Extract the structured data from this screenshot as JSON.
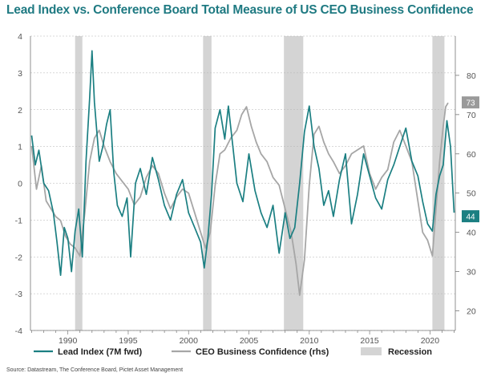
{
  "title": "Lead Index vs. Conference Board Total Measure of US CEO Business Confidence",
  "source": "Source: Datastream, The Conference Board, Pictet Asset Management",
  "colors": {
    "lead": "#1b7f82",
    "ceo": "#a6a6a6",
    "recession": "#d4d4d4",
    "title": "#1f7a82",
    "badge_ceo": "#9a9a9a",
    "badge_lead": "#1b7f82"
  },
  "chart_data": {
    "type": "line",
    "title": "Lead Index vs. Conference Board Total Measure of US CEO Business Confidence",
    "x_range": [
      1986.9,
      2022.1
    ],
    "x_ticks": [
      "1990",
      "1995",
      "2000",
      "2005",
      "2010",
      "2015",
      "2020"
    ],
    "y_left": {
      "range": [
        -4,
        4
      ],
      "ticks": [
        "4",
        "3",
        "2",
        "1",
        "0",
        "-1",
        "-2",
        "-3",
        "-4"
      ]
    },
    "y_right": {
      "range": [
        15,
        90
      ],
      "ticks": [
        "80",
        "70",
        "60",
        "50",
        "40",
        "30",
        "20"
      ]
    },
    "grid": true,
    "legend_position": "bottom",
    "recessions": [
      [
        1990.6,
        1991.2
      ],
      [
        2001.2,
        2001.9
      ],
      [
        2007.9,
        2009.5
      ],
      [
        2020.2,
        2021.2
      ]
    ],
    "series": [
      {
        "name": "Lead Index (7M fwd)",
        "axis": "left",
        "x": [
          1987.0,
          1987.3,
          1987.6,
          1988.0,
          1988.4,
          1988.8,
          1989.1,
          1989.4,
          1989.7,
          1990.0,
          1990.3,
          1990.6,
          1990.9,
          1991.2,
          1991.5,
          1991.8,
          1992.0,
          1992.2,
          1992.4,
          1992.6,
          1992.9,
          1993.2,
          1993.5,
          1993.8,
          1994.1,
          1994.5,
          1994.9,
          1995.2,
          1995.6,
          1996.0,
          1996.5,
          1997.0,
          1997.5,
          1998.0,
          1998.5,
          1999.0,
          1999.5,
          2000.0,
          2000.5,
          2001.0,
          2001.3,
          2001.6,
          2001.9,
          2002.2,
          2002.6,
          2003.0,
          2003.3,
          2003.7,
          2004.0,
          2004.5,
          2005.0,
          2005.5,
          2006.0,
          2006.5,
          2007.0,
          2007.5,
          2008.0,
          2008.4,
          2008.8,
          2009.2,
          2009.6,
          2010.0,
          2010.4,
          2010.8,
          2011.2,
          2011.6,
          2012.0,
          2012.5,
          2013.0,
          2013.5,
          2014.0,
          2014.5,
          2015.0,
          2015.5,
          2016.0,
          2016.5,
          2017.0,
          2017.5,
          2018.0,
          2018.5,
          2019.0,
          2019.4,
          2019.8,
          2020.2,
          2020.5,
          2020.8,
          2021.1,
          2021.4,
          2021.7,
          2022.0
        ],
        "values": [
          1.3,
          0.5,
          0.9,
          0.0,
          -0.2,
          -0.8,
          -1.6,
          -2.5,
          -1.2,
          -1.5,
          -2.4,
          -1.3,
          -0.7,
          -2.0,
          0.6,
          2.3,
          3.6,
          2.2,
          1.4,
          0.6,
          1.0,
          1.6,
          2.0,
          0.3,
          -0.6,
          -0.9,
          -0.4,
          -2.0,
          0.0,
          0.4,
          -0.3,
          0.7,
          0.1,
          -0.6,
          -1.0,
          -0.3,
          0.1,
          -0.8,
          -1.2,
          -1.6,
          -2.3,
          -1.5,
          -0.3,
          1.5,
          2.0,
          1.2,
          2.1,
          0.9,
          0.0,
          -0.5,
          0.8,
          -0.2,
          -0.8,
          -1.2,
          -0.6,
          -1.9,
          -0.8,
          -1.5,
          -1.2,
          0.0,
          1.4,
          2.1,
          1.0,
          0.4,
          -0.6,
          -0.2,
          -0.9,
          0.1,
          0.8,
          -1.1,
          -0.3,
          0.8,
          0.2,
          -0.4,
          -0.7,
          0.1,
          0.5,
          1.0,
          1.5,
          0.6,
          0.2,
          -0.5,
          -1.1,
          -1.3,
          -0.3,
          0.2,
          0.5,
          1.7,
          1.0,
          -0.8
        ]
      },
      {
        "name": "CEO Business Confidence (rhs)",
        "axis": "right",
        "x": [
          1987.0,
          1987.4,
          1987.8,
          1988.2,
          1988.6,
          1989.0,
          1989.4,
          1989.8,
          1990.2,
          1990.6,
          1991.0,
          1991.4,
          1991.8,
          1992.2,
          1992.6,
          1993.0,
          1993.5,
          1994.0,
          1994.5,
          1995.0,
          1995.5,
          1996.0,
          1996.5,
          1997.0,
          1997.5,
          1998.0,
          1998.5,
          1999.0,
          1999.5,
          2000.0,
          2000.5,
          2001.0,
          2001.4,
          2001.8,
          2002.2,
          2002.6,
          2003.0,
          2003.5,
          2004.0,
          2004.4,
          2004.8,
          2005.2,
          2005.6,
          2006.0,
          2006.5,
          2007.0,
          2007.5,
          2008.0,
          2008.5,
          2008.9,
          2009.2,
          2009.6,
          2010.0,
          2010.4,
          2010.8,
          2011.2,
          2011.6,
          2012.0,
          2012.5,
          2013.0,
          2013.5,
          2014.0,
          2014.5,
          2015.0,
          2015.5,
          2016.0,
          2016.5,
          2017.0,
          2017.5,
          2018.0,
          2018.5,
          2019.0,
          2019.4,
          2019.8,
          2020.2,
          2020.5,
          2020.8,
          2021.1,
          2021.3,
          2021.5
        ],
        "values": [
          62,
          51,
          57,
          48,
          46,
          44,
          43,
          39,
          37,
          36,
          34,
          45,
          58,
          64,
          66,
          62,
          58,
          55,
          53,
          51,
          47,
          49,
          54,
          57,
          55,
          50,
          46,
          49,
          51,
          50,
          45,
          40,
          36,
          40,
          52,
          60,
          61,
          64,
          66,
          70,
          72,
          67,
          63,
          60,
          58,
          54,
          52,
          46,
          40,
          32,
          24,
          33,
          52,
          65,
          67,
          63,
          60,
          58,
          55,
          57,
          60,
          61,
          62,
          55,
          51,
          54,
          56,
          63,
          66,
          62,
          58,
          48,
          40,
          38,
          34,
          46,
          58,
          67,
          72,
          73
        ]
      }
    ],
    "end_labels": {
      "ceo": "73",
      "lead": "44"
    }
  },
  "legend": [
    {
      "label": "Lead Index (7M fwd)"
    },
    {
      "label": "CEO Business Confidence (rhs)"
    },
    {
      "label": "Recession"
    }
  ]
}
